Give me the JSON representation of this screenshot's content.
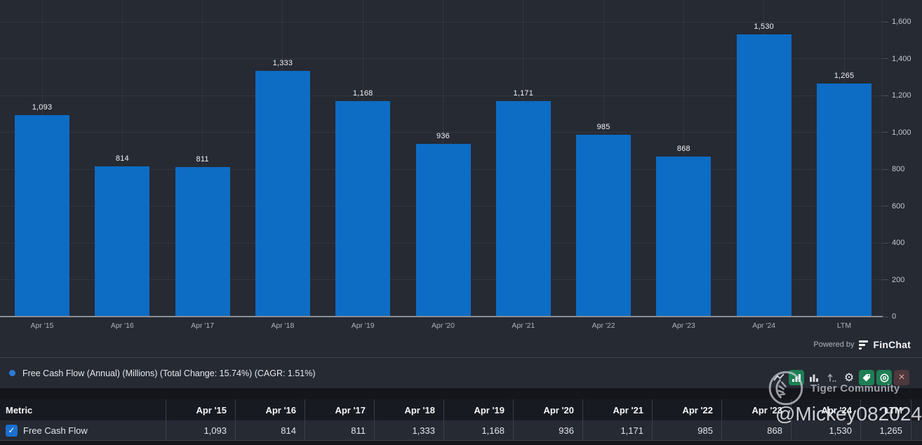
{
  "chart_data": {
    "type": "bar",
    "title": "Free Cash Flow (Annual) (Millions)",
    "categories": [
      "Apr '15",
      "Apr '16",
      "Apr '17",
      "Apr '18",
      "Apr '19",
      "Apr '20",
      "Apr '21",
      "Apr '22",
      "Apr '23",
      "Apr '24",
      "LTM"
    ],
    "values": [
      1093,
      814,
      811,
      1333,
      1168,
      936,
      1171,
      985,
      868,
      1530,
      1265
    ],
    "value_labels": [
      "1,093",
      "814",
      "811",
      "1,333",
      "1,168",
      "936",
      "1,171",
      "985",
      "868",
      "1,530",
      "1,265"
    ],
    "xlabel": "",
    "ylabel": "",
    "ylim": [
      0,
      1600
    ],
    "yticks": [
      0,
      200,
      400,
      600,
      800,
      1000,
      1200,
      1400,
      1600
    ],
    "ytick_labels": [
      "0",
      "200",
      "400",
      "600",
      "800",
      "1,000",
      "1,200",
      "1,400",
      "1,600"
    ],
    "grid": true,
    "legend_position": "bottom",
    "bar_color": "#0d6cc4"
  },
  "branding": {
    "powered_by": "Powered by",
    "brand": "FinChat"
  },
  "legend": {
    "label": "Free Cash Flow (Annual) (Millions) (Total Change: 15.74%) (CAGR: 1.51%)",
    "dot_color": "#2b7bd6"
  },
  "toolbar": {
    "icons": [
      {
        "name": "trend-line-icon",
        "style": "plain"
      },
      {
        "name": "bar-chart-active-icon",
        "style": "green"
      },
      {
        "name": "bar-chart-icon",
        "style": "plain"
      },
      {
        "name": "scale-arrow-icon",
        "style": "plain"
      },
      {
        "name": "gear-icon",
        "style": "plain"
      },
      {
        "name": "tag-icon",
        "style": "green"
      },
      {
        "name": "eye-icon",
        "style": "green"
      },
      {
        "name": "close-icon",
        "style": "red"
      }
    ]
  },
  "table": {
    "metric_header": "Metric",
    "columns": [
      "Apr '15",
      "Apr '16",
      "Apr '17",
      "Apr '18",
      "Apr '19",
      "Apr '20",
      "Apr '21",
      "Apr '22",
      "Apr '23",
      "Apr '24",
      "LTM"
    ],
    "rows": [
      {
        "metric": "Free Cash Flow",
        "checked": true,
        "values": [
          "1,093",
          "814",
          "811",
          "1,333",
          "1,168",
          "936",
          "1,171",
          "985",
          "868",
          "1,530",
          "1,265"
        ]
      }
    ]
  },
  "watermark": {
    "community": "Tiger Community",
    "handle": "@Mickey082024"
  },
  "colors": {
    "background": "#262a33",
    "bar": "#0d6cc4",
    "toolbar_green": "#1e7e55",
    "close_red_bg": "#4d383c",
    "checkbox_blue": "#1a70d0"
  }
}
